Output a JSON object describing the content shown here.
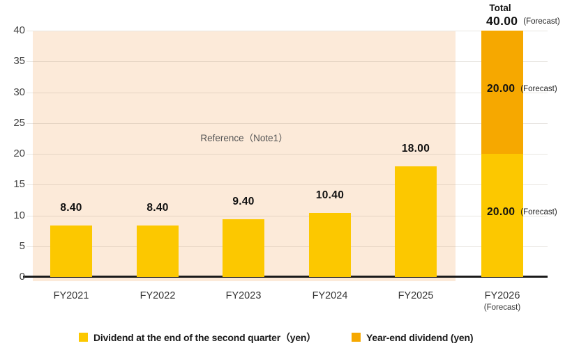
{
  "chart_data": {
    "type": "bar",
    "stacked": true,
    "categories": [
      "FY2021",
      "FY2022",
      "FY2023",
      "FY2024",
      "FY2025",
      "FY2026"
    ],
    "category_sublabels": [
      "",
      "",
      "",
      "",
      "",
      "(Forecast)"
    ],
    "series": [
      {
        "name": "Dividend at the end of the second quarter（yen）",
        "color": "#FCC800",
        "values": [
          8.4,
          8.4,
          9.4,
          10.4,
          18.0,
          20.0
        ]
      },
      {
        "name": "Year-end dividend (yen)",
        "color": "#F6A800",
        "values": [
          0,
          0,
          0,
          0,
          0,
          20.0
        ]
      }
    ],
    "value_labels": [
      "8.40",
      "8.40",
      "9.40",
      "10.40",
      "18.00",
      ""
    ],
    "forecast_annotation": {
      "title": "Total",
      "value": "40.00",
      "suffix": "(Forecast)"
    },
    "segment_annotations": [
      {
        "series": 0,
        "category": "FY2026",
        "value_label": "20.00",
        "suffix": "(Forecast)"
      },
      {
        "series": 1,
        "category": "FY2026",
        "value_label": "20.00",
        "suffix": "(Forecast)"
      }
    ],
    "reference_region": {
      "label": "Reference（Note1）",
      "from": "FY2021",
      "to": "FY2025",
      "bg_color": "#FCEAD9"
    },
    "ylim": [
      0,
      40
    ],
    "yticks": [
      0,
      5,
      10,
      15,
      20,
      25,
      30,
      35,
      40
    ],
    "grid": true,
    "legend_position": "bottom",
    "legend": [
      {
        "label": "Dividend at the end of the second quarter（yen）",
        "color": "#FCC800"
      },
      {
        "label": "Year-end dividend (yen)",
        "color": "#F6A800"
      }
    ],
    "axis_color": "#1A1A1A",
    "gridline_color": "rgba(150,135,120,0.22)"
  }
}
